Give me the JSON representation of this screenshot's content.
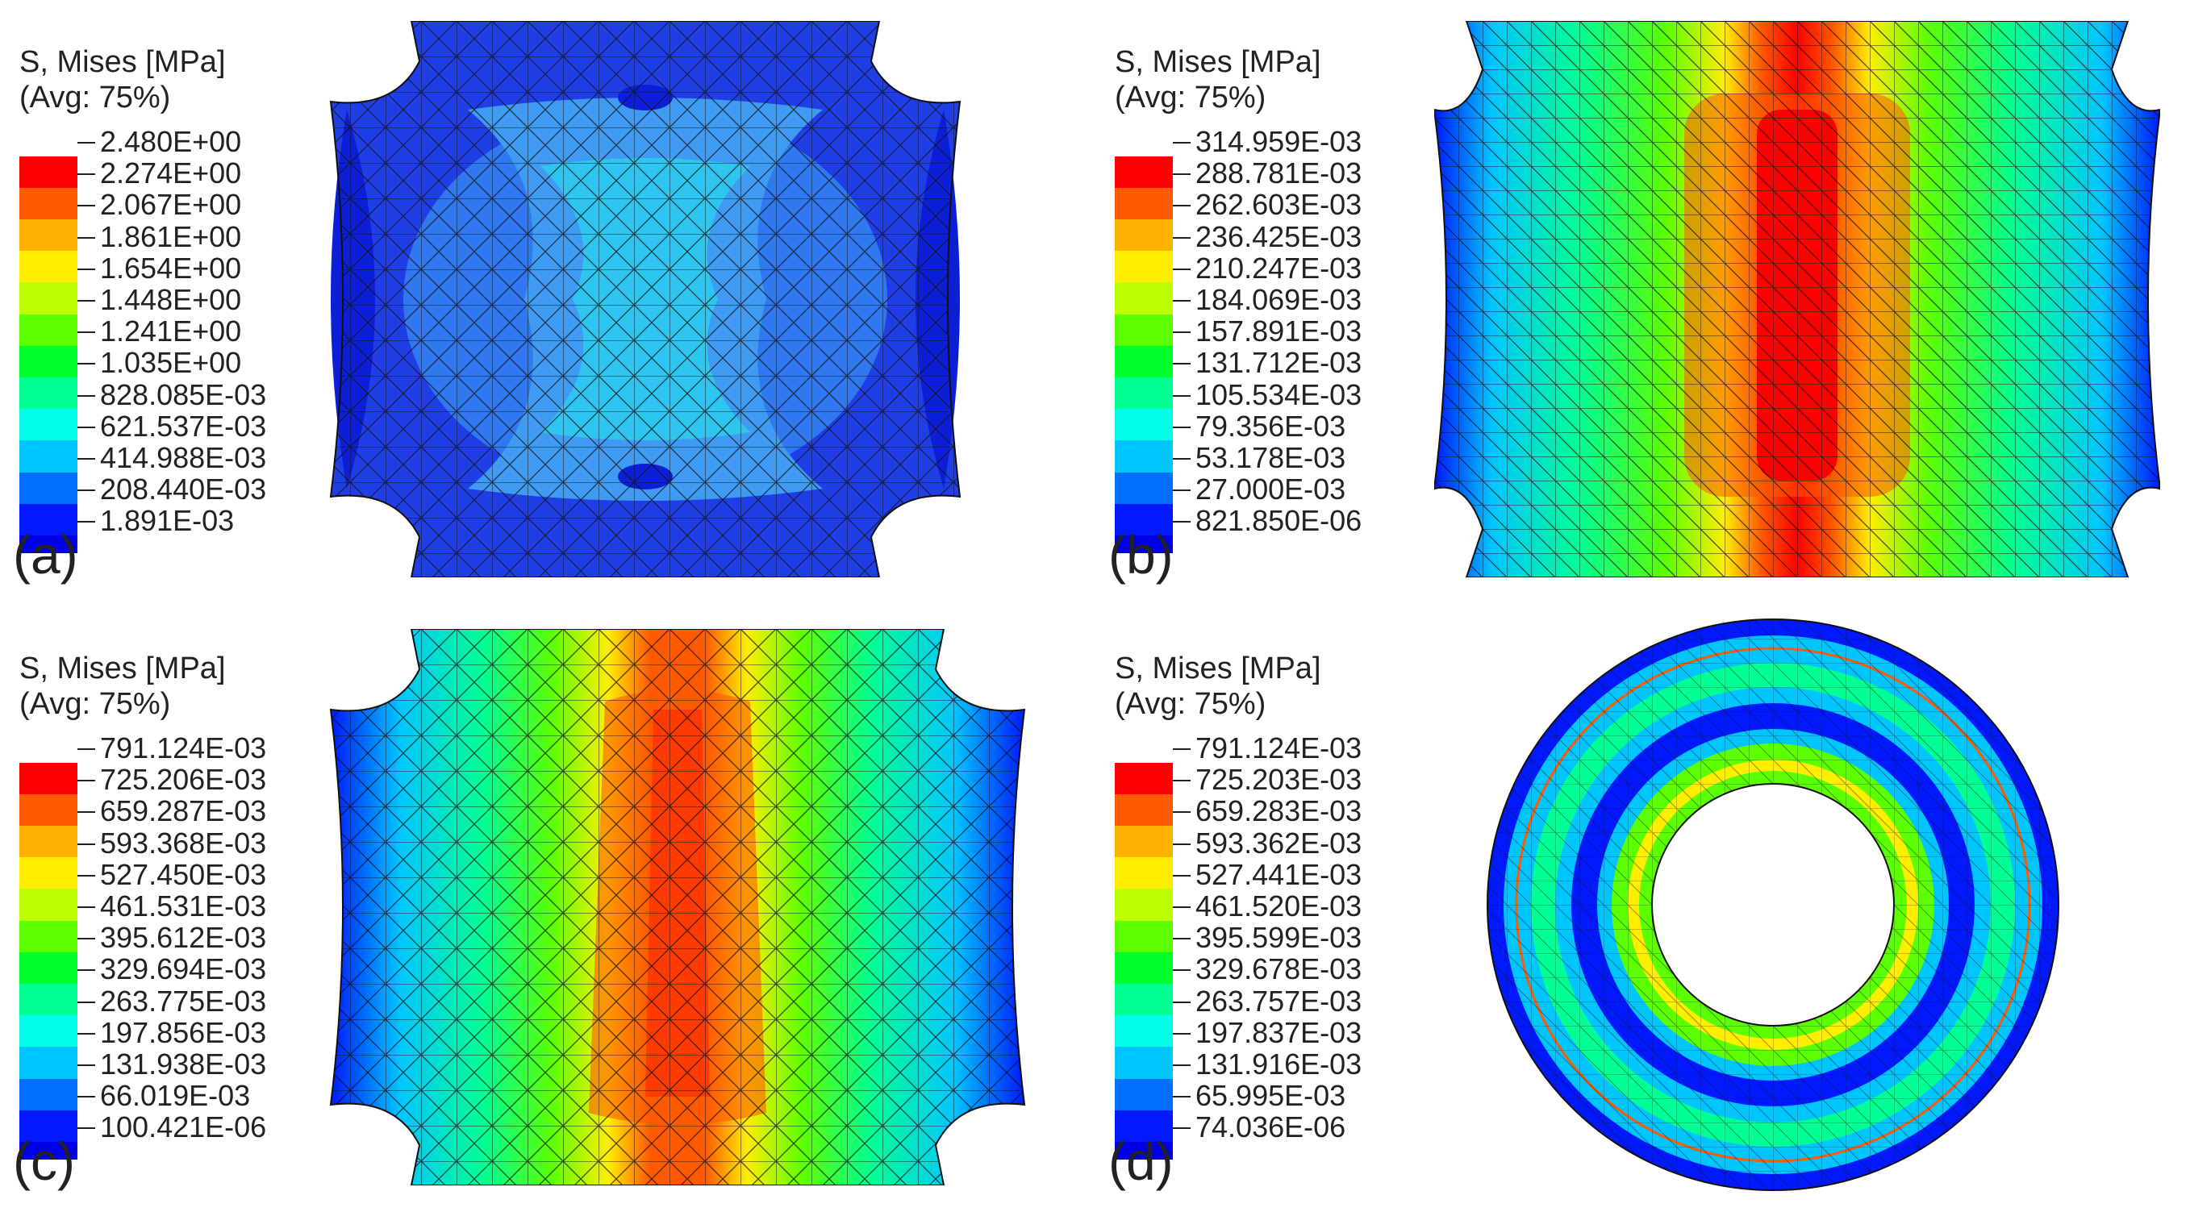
{
  "colors": [
    "#ff0000",
    "#ff5a00",
    "#ffb100",
    "#ffee00",
    "#bdff00",
    "#5cff00",
    "#00ff2c",
    "#00ff94",
    "#00ffe9",
    "#00c6ff",
    "#006eff",
    "#0019ff",
    "#0000e8"
  ],
  "panels": [
    {
      "letter": "(a)",
      "title_line1": "S, Mises [MPa]",
      "title_line2": "(Avg: 75%)",
      "labels": [
        "2.480E+00",
        "2.274E+00",
        "2.067E+00",
        "1.861E+00",
        "1.654E+00",
        "1.448E+00",
        "1.241E+00",
        "1.035E+00",
        "828.085E-03",
        "621.537E-03",
        "414.988E-03",
        "208.440E-03",
        "1.891E-03"
      ],
      "icon": "stress-contour-cube-side-view-icon"
    },
    {
      "letter": "(b)",
      "title_line1": "S, Mises [MPa]",
      "title_line2": "(Avg: 75%)",
      "labels": [
        "314.959E-03",
        "288.781E-03",
        "262.603E-03",
        "236.425E-03",
        "210.247E-03",
        "184.069E-03",
        "157.891E-03",
        "131.712E-03",
        "105.534E-03",
        "79.356E-03",
        "53.178E-03",
        "27.000E-03",
        "821.850E-06"
      ],
      "icon": "stress-contour-cube-vertical-band-icon"
    },
    {
      "letter": "(c)",
      "title_line1": "S, Mises [MPa]",
      "title_line2": "(Avg: 75%)",
      "labels": [
        "791.124E-03",
        "725.206E-03",
        "659.287E-03",
        "593.368E-03",
        "527.450E-03",
        "461.531E-03",
        "395.612E-03",
        "329.694E-03",
        "263.775E-03",
        "197.856E-03",
        "131.938E-03",
        "66.019E-03",
        "100.421E-06"
      ],
      "icon": "stress-contour-cube-bulged-band-icon"
    },
    {
      "letter": "(d)",
      "title_line1": "S, Mises [MPa]",
      "title_line2": "(Avg: 75%)",
      "labels": [
        "791.124E-03",
        "725.203E-03",
        "659.283E-03",
        "593.362E-03",
        "527.441E-03",
        "461.520E-03",
        "395.599E-03",
        "329.678E-03",
        "263.757E-03",
        "197.837E-03",
        "131.916E-03",
        "65.995E-03",
        "74.036E-06"
      ],
      "icon": "stress-contour-ring-cross-section-icon"
    }
  ]
}
